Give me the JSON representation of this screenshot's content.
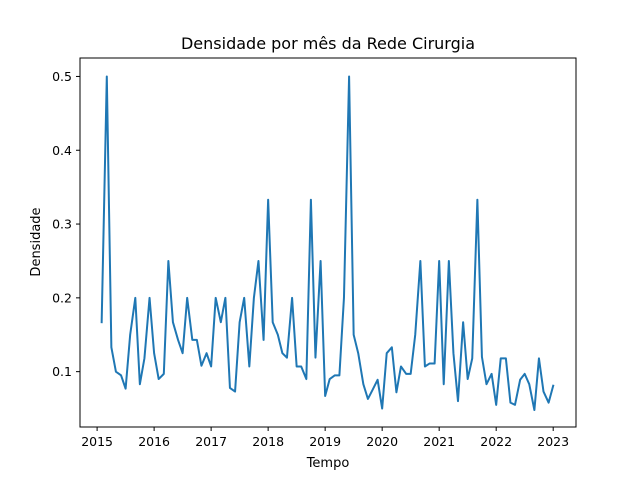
{
  "chart_data": {
    "type": "line",
    "title": "Densidade por mês da Rede Cirurgia",
    "xlabel": "Tempo",
    "ylabel": "Densidade",
    "xlim": [
      2014.7,
      2023.4
    ],
    "ylim": [
      0.025,
      0.525
    ],
    "x_ticks": [
      2015,
      2016,
      2017,
      2018,
      2019,
      2020,
      2021,
      2022,
      2023
    ],
    "x_tick_labels": [
      "2015",
      "2016",
      "2017",
      "2018",
      "2019",
      "2020",
      "2021",
      "2022",
      "2023"
    ],
    "y_ticks": [
      0.1,
      0.2,
      0.3,
      0.4,
      0.5
    ],
    "y_tick_labels": [
      "0.1",
      "0.2",
      "0.3",
      "0.4",
      "0.5"
    ],
    "grid": false,
    "color": "#1f77b4",
    "series": [
      {
        "x": [
          2015.08,
          2015.17,
          2015.25,
          2015.33,
          2015.42,
          2015.5,
          2015.58,
          2015.67,
          2015.75,
          2015.83,
          2015.92,
          2016.0,
          2016.08,
          2016.17,
          2016.25,
          2016.33,
          2016.42,
          2016.5,
          2016.58,
          2016.67,
          2016.75,
          2016.83,
          2016.92,
          2017.0,
          2017.08,
          2017.17,
          2017.25,
          2017.33,
          2017.42,
          2017.5,
          2017.58,
          2017.67,
          2017.75,
          2017.83,
          2017.92,
          2018.0,
          2018.08,
          2018.17,
          2018.25,
          2018.33,
          2018.42,
          2018.5,
          2018.58,
          2018.67,
          2018.75,
          2018.83,
          2018.92,
          2019.0,
          2019.08,
          2019.17,
          2019.25,
          2019.33,
          2019.42,
          2019.5,
          2019.58,
          2019.67,
          2019.75,
          2019.83,
          2019.92,
          2020.0,
          2020.08,
          2020.17,
          2020.25,
          2020.33,
          2020.42,
          2020.5,
          2020.58,
          2020.67,
          2020.75,
          2020.83,
          2020.92,
          2021.0,
          2021.08,
          2021.17,
          2021.25,
          2021.33,
          2021.42,
          2021.5,
          2021.58,
          2021.67,
          2021.75,
          2021.83,
          2021.92,
          2022.0,
          2022.08,
          2022.17,
          2022.25,
          2022.33,
          2022.42,
          2022.5,
          2022.58,
          2022.67,
          2022.75,
          2022.83,
          2022.92,
          2023.0
        ],
        "y": [
          0.167,
          0.5,
          0.133,
          0.1,
          0.095,
          0.077,
          0.15,
          0.2,
          0.083,
          0.118,
          0.2,
          0.125,
          0.09,
          0.097,
          0.25,
          0.167,
          0.143,
          0.125,
          0.2,
          0.143,
          0.143,
          0.108,
          0.125,
          0.107,
          0.2,
          0.167,
          0.2,
          0.078,
          0.073,
          0.167,
          0.2,
          0.107,
          0.2,
          0.25,
          0.143,
          0.333,
          0.167,
          0.15,
          0.125,
          0.119,
          0.2,
          0.107,
          0.107,
          0.09,
          0.333,
          0.119,
          0.25,
          0.067,
          0.09,
          0.095,
          0.095,
          0.2,
          0.5,
          0.15,
          0.125,
          0.083,
          0.063,
          0.075,
          0.089,
          0.05,
          0.125,
          0.133,
          0.072,
          0.107,
          0.097,
          0.097,
          0.15,
          0.25,
          0.107,
          0.111,
          0.111,
          0.25,
          0.083,
          0.25,
          0.125,
          0.06,
          0.167,
          0.09,
          0.118,
          0.333,
          0.12,
          0.083,
          0.097,
          0.055,
          0.118,
          0.118,
          0.058,
          0.055,
          0.089,
          0.097,
          0.083,
          0.048,
          0.118,
          0.073,
          0.058,
          0.081
        ]
      }
    ]
  }
}
